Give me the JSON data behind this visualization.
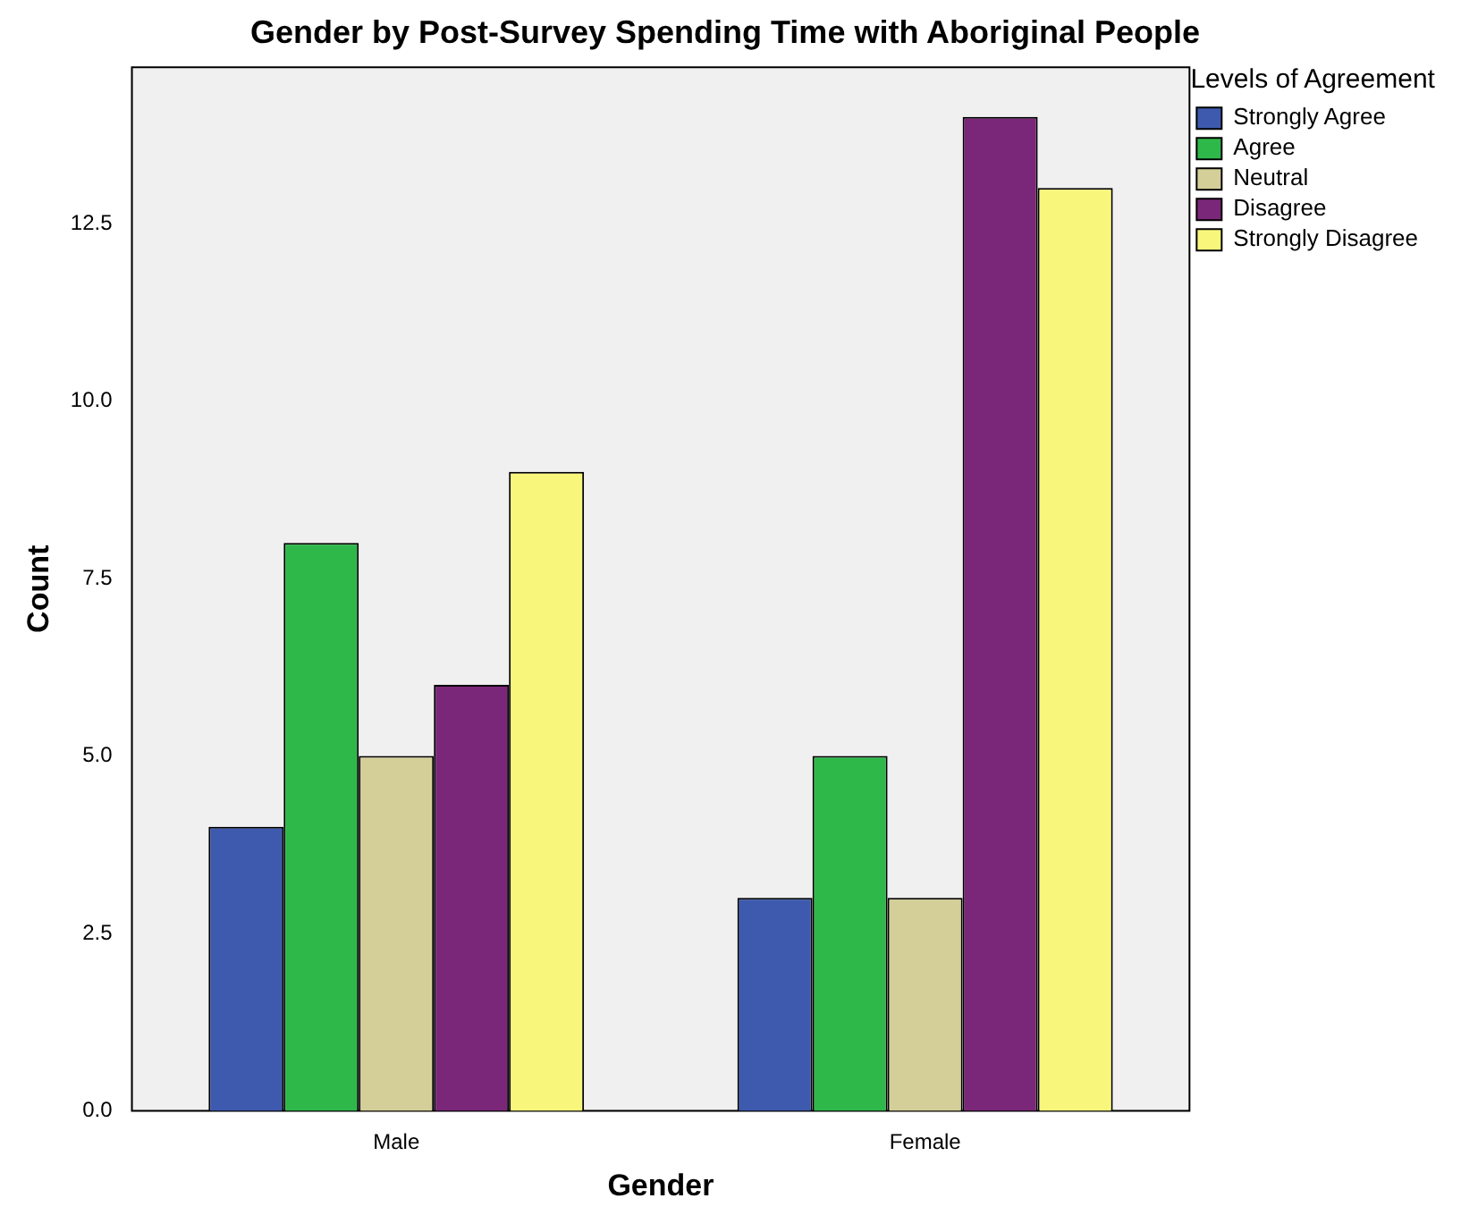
{
  "chart_data": {
    "type": "bar",
    "title": "Gender by Post-Survey Spending Time with Aboriginal People",
    "xlabel": "Gender",
    "ylabel": "Count",
    "legend_title": "Levels of Agreement",
    "categories": [
      "Male",
      "Female"
    ],
    "series": [
      {
        "name": "Strongly Agree",
        "color": "#3d5aae",
        "values": [
          4,
          3
        ]
      },
      {
        "name": "Agree",
        "color": "#2fb84a",
        "values": [
          8,
          5
        ]
      },
      {
        "name": "Neutral",
        "color": "#d4cf99",
        "values": [
          5,
          3
        ]
      },
      {
        "name": "Disagree",
        "color": "#7b2779",
        "values": [
          6,
          14
        ]
      },
      {
        "name": "Strongly Disagree",
        "color": "#f9f77b",
        "values": [
          9,
          13
        ]
      }
    ],
    "ylim": [
      0,
      14.7
    ],
    "yticks": [
      {
        "value": 0,
        "label": "0.0"
      },
      {
        "value": 2.5,
        "label": "2.5"
      },
      {
        "value": 5,
        "label": "5.0"
      },
      {
        "value": 7.5,
        "label": "7.5"
      },
      {
        "value": 10,
        "label": "10.0"
      },
      {
        "value": 12.5,
        "label": "12.5"
      }
    ],
    "grid": false,
    "legend": "top right"
  }
}
